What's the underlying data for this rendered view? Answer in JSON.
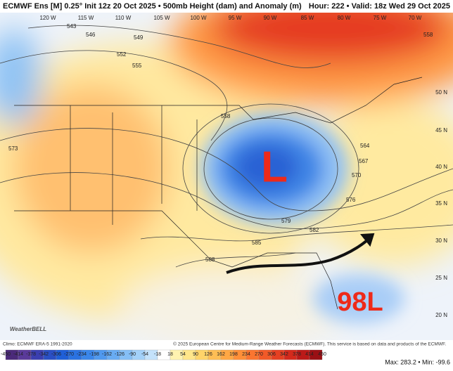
{
  "header": {
    "left": "ECMWF Ens [M] 0.25° Init 12z 20 Oct 2025 • 500mb Height (dam) and Anomaly (m)",
    "right": "Hour: 222 • Valid: 18z Wed 29 Oct 2025"
  },
  "longitudes": [
    "120 W",
    "115 W",
    "110 W",
    "105 W",
    "100 W",
    "95 W",
    "90 W",
    "85 W",
    "80 W",
    "75 W",
    "70 W"
  ],
  "latitudes": [
    "50 N",
    "45 N",
    "40 N",
    "35 N",
    "30 N",
    "25 N",
    "20 N"
  ],
  "contour_labels": [
    "543",
    "546",
    "549",
    "552",
    "555",
    "558",
    "558",
    "573",
    "564",
    "567",
    "570",
    "576",
    "579",
    "582",
    "585",
    "588"
  ],
  "annotations": {
    "low": "L",
    "storm": "98L"
  },
  "logo": "WeatherBELL",
  "footer": {
    "climo": "Climo: ECMWF ERA-5 1991-2020",
    "copyright": "© 2025 European Centre for Medium-Range Weather Forecasts (ECMWF). This service is based on data and products of the ECMWF.",
    "stats": "Max: 283.2 • Min: -99.6"
  },
  "colorbar": {
    "ticks": [
      -450,
      -414,
      -378,
      -342,
      -306,
      -270,
      -234,
      -198,
      -162,
      -126,
      -90,
      -54,
      -18,
      18,
      54,
      90,
      126,
      162,
      198,
      234,
      270,
      306,
      342,
      378,
      414,
      450
    ],
    "colors": [
      "#4b2a7a",
      "#5a3a9a",
      "#3b3fb0",
      "#2a4fc4",
      "#1f5fd8",
      "#2a72e2",
      "#3a86ea",
      "#5099ef",
      "#69acf3",
      "#85bff6",
      "#a3d1f9",
      "#c4e2fb",
      "#ffffff",
      "#fff3b0",
      "#ffe68a",
      "#ffd46a",
      "#ffbe55",
      "#ffa744",
      "#ff8f38",
      "#fb7530",
      "#f25a28",
      "#e64022",
      "#d42a1c",
      "#bb1a18",
      "#9a1014"
    ]
  }
}
